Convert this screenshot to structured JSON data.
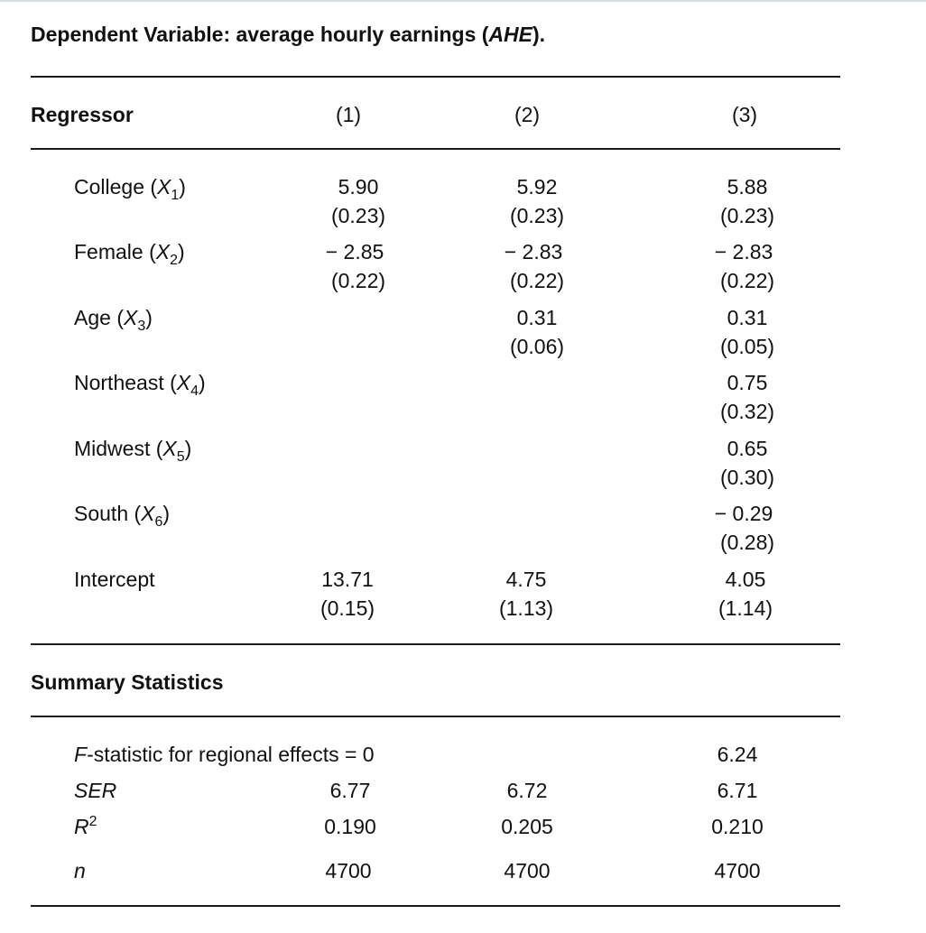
{
  "title": {
    "prefix": "Dependent Variable: average hourly earnings (",
    "abbr": "AHE",
    "suffix": ")."
  },
  "header": {
    "regressor": "Regressor",
    "columns": [
      "(1)",
      "(2)",
      "(3)"
    ]
  },
  "regressors": [
    {
      "name": "College (",
      "var": "X",
      "sub": "1",
      "close": ")",
      "cells": [
        {
          "coef": "5.90",
          "se": "(0.23)"
        },
        {
          "coef": "5.92",
          "se": "(0.23)"
        },
        {
          "coef": "5.88",
          "se": "(0.23)"
        }
      ]
    },
    {
      "name": "Female (",
      "var": "X",
      "sub": "2",
      "close": ")",
      "cells": [
        {
          "coef": "− 2.85",
          "se": "(0.22)"
        },
        {
          "coef": "− 2.83",
          "se": "(0.22)"
        },
        {
          "coef": "− 2.83",
          "se": "(0.22)"
        }
      ]
    },
    {
      "name": "Age (",
      "var": "X",
      "sub": "3",
      "close": ")",
      "cells": [
        null,
        {
          "coef": "0.31",
          "se": "(0.06)"
        },
        {
          "coef": "0.31",
          "se": "(0.05)"
        }
      ]
    },
    {
      "name": "Northeast (",
      "var": "X",
      "sub": "4",
      "close": ")",
      "cells": [
        null,
        null,
        {
          "coef": "0.75",
          "se": "(0.32)"
        }
      ]
    },
    {
      "name": "Midwest (",
      "var": "X",
      "sub": "5",
      "close": ")",
      "cells": [
        null,
        null,
        {
          "coef": "0.65",
          "se": "(0.30)"
        }
      ]
    },
    {
      "name": "South (",
      "var": "X",
      "sub": "6",
      "close": ")",
      "cells": [
        null,
        null,
        {
          "coef": "− 0.29",
          "se": "(0.28)"
        }
      ]
    },
    {
      "name": "Intercept",
      "var": "",
      "sub": "",
      "close": "",
      "cells": [
        {
          "coef": "13.71",
          "se": "(0.15)"
        },
        {
          "coef": "4.75",
          "se": "(1.13)"
        },
        {
          "coef": "4.05",
          "se": "(1.14)"
        }
      ]
    }
  ],
  "summary": {
    "heading": "Summary Statistics",
    "fstat": {
      "italic": "F",
      "label": "-statistic for regional effects = 0",
      "values": [
        "",
        "",
        "6.24"
      ]
    },
    "ser": {
      "label": "SER",
      "values": [
        "6.77",
        "6.72",
        "6.71"
      ]
    },
    "r2": {
      "label": "R",
      "sup": "2",
      "values": [
        "0.190",
        "0.205",
        "0.210"
      ]
    },
    "n": {
      "label": "n",
      "values": [
        "4700",
        "4700",
        "4700"
      ]
    }
  }
}
